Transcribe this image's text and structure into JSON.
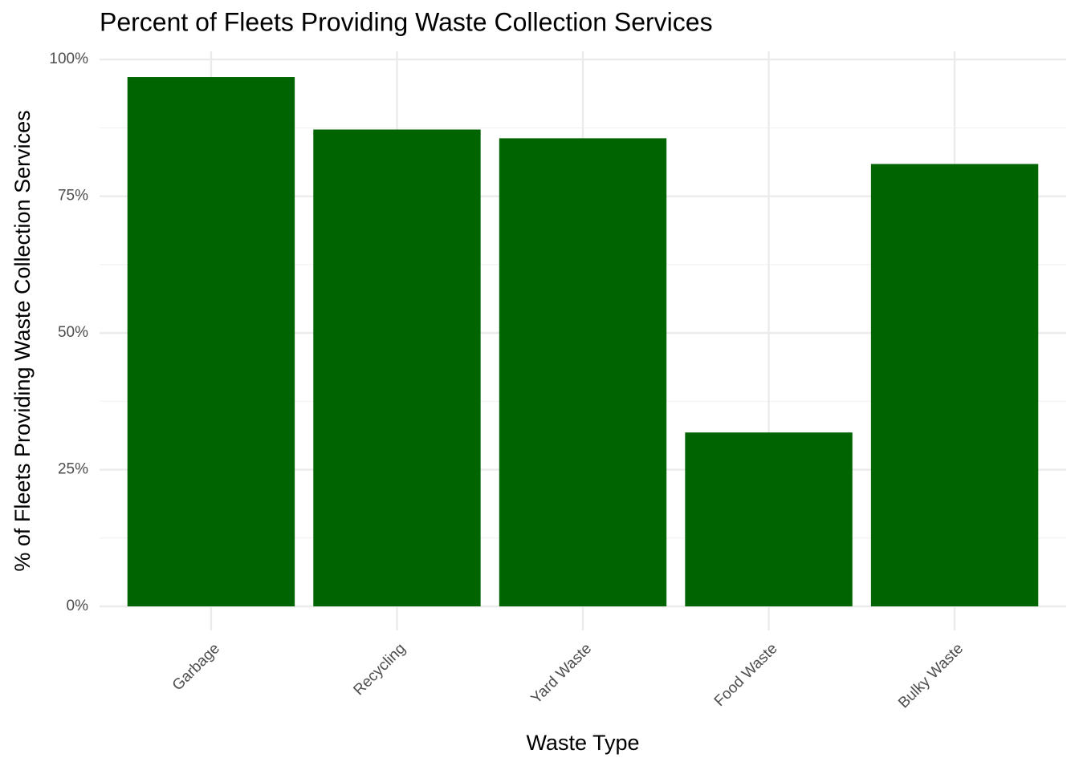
{
  "chart_data": {
    "type": "bar",
    "title": "Percent of Fleets Providing Waste Collection Services",
    "x_label": "Waste Type",
    "y_label": "% of Fleets Providing Waste Collection Services",
    "categories": [
      "Garbage",
      "Recycling",
      "Yard Waste",
      "Food Waste",
      "Bulky Waste"
    ],
    "values": [
      96.8,
      87.2,
      85.6,
      31.8,
      80.9
    ],
    "color": "#006400",
    "ylim": [
      -4.4,
      101.5
    ],
    "yticks": [
      {
        "value": 0,
        "label": "0%"
      },
      {
        "value": 25,
        "label": "25%"
      },
      {
        "value": 50,
        "label": "50%"
      },
      {
        "value": 75,
        "label": "75%"
      },
      {
        "value": 100,
        "label": "100%"
      }
    ],
    "minor_yticks": [
      12.5,
      37.5,
      62.5,
      87.5
    ],
    "grid": true
  }
}
